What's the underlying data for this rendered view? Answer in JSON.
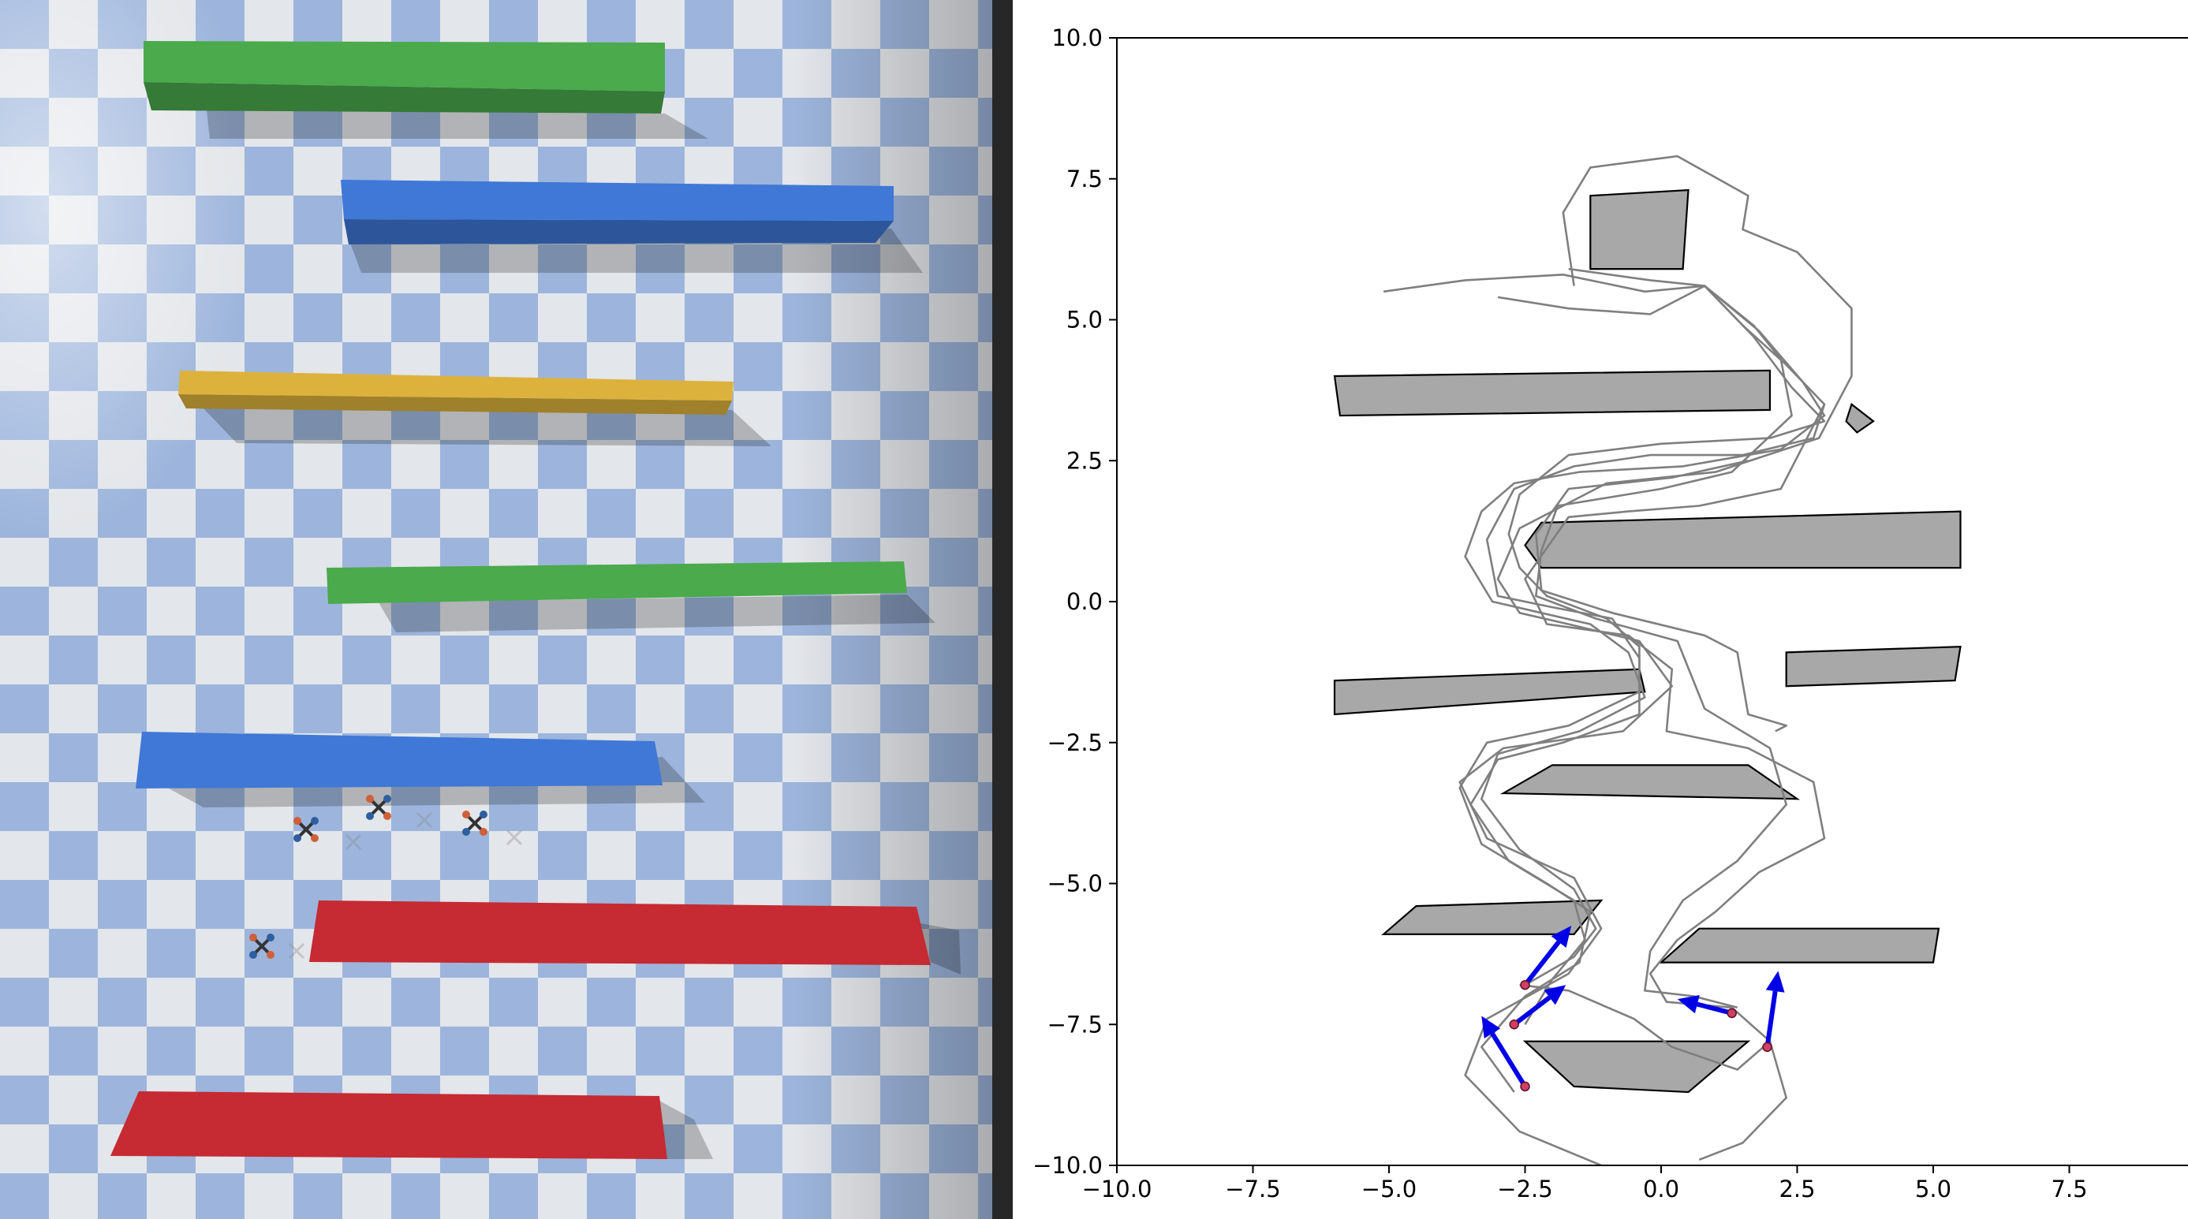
{
  "window": {
    "left_panel": "pybullet-style 3D simulation view: checkerboard floor, bar obstacles and quadrotors",
    "right_panel": "2D trajectory plot"
  },
  "simulation": {
    "floor_colors": {
      "light": "#e3e6ea",
      "dark": "#9db5dc"
    },
    "obstacle_colors": {
      "green": "#4aaa4c",
      "blue": "#3f78d6",
      "yellow": "#ddb23c",
      "red": "#c62a32"
    },
    "obstacles": [
      {
        "color": "green"
      },
      {
        "color": "blue"
      },
      {
        "color": "yellow"
      },
      {
        "color": "green"
      },
      {
        "color": "blue"
      },
      {
        "color": "red"
      },
      {
        "color": "red"
      }
    ],
    "drone_count": 5,
    "ghost_drone_count": 5
  },
  "chart_data": {
    "type": "scatter",
    "xlim": [
      -10,
      10
    ],
    "ylim": [
      -10,
      10
    ],
    "x_ticks": [
      -10.0,
      -7.5,
      -5.0,
      -2.5,
      0.0,
      2.5,
      5.0,
      7.5
    ],
    "y_ticks": [
      -10.0,
      -7.5,
      -5.0,
      -2.5,
      0.0,
      2.5,
      5.0,
      7.5,
      10.0
    ],
    "x_tick_labels": [
      "−10.0",
      "−7.5",
      "−5.0",
      "−2.5",
      "0.0",
      "2.5",
      "5.0",
      "7.5"
    ],
    "y_tick_labels": [
      "−10.0",
      "−7.5",
      "−5.0",
      "−2.5",
      "0.0",
      "2.5",
      "5.0",
      "7.5",
      "10.0"
    ],
    "grid": false,
    "obstacle_color": "#a8a8a8",
    "path_color": "#7f7f7f",
    "arrow_color": "#0000e6",
    "robot_color": "#d04060",
    "obstacles": [
      [
        [
          -1.3,
          7.2
        ],
        [
          0.5,
          7.3
        ],
        [
          0.4,
          5.9
        ],
        [
          -1.3,
          5.9
        ]
      ],
      [
        [
          -6.0,
          4.0
        ],
        [
          2.0,
          4.1
        ],
        [
          2.0,
          3.4
        ],
        [
          -5.9,
          3.3
        ]
      ],
      [
        [
          3.5,
          3.5
        ],
        [
          3.9,
          3.2
        ],
        [
          3.6,
          3.0
        ],
        [
          3.4,
          3.2
        ]
      ],
      [
        [
          -2.2,
          1.4
        ],
        [
          5.5,
          1.6
        ],
        [
          5.5,
          0.6
        ],
        [
          -2.2,
          0.6
        ],
        [
          -2.5,
          1.0
        ]
      ],
      [
        [
          -6.0,
          -1.4
        ],
        [
          -0.4,
          -1.2
        ],
        [
          -0.3,
          -1.6
        ],
        [
          -6.0,
          -2.0
        ]
      ],
      [
        [
          2.3,
          -0.9
        ],
        [
          5.5,
          -0.8
        ],
        [
          5.4,
          -1.4
        ],
        [
          2.3,
          -1.5
        ]
      ],
      [
        [
          -2.0,
          -2.9
        ],
        [
          1.6,
          -2.9
        ],
        [
          2.5,
          -3.5
        ],
        [
          -2.9,
          -3.4
        ]
      ],
      [
        [
          -4.5,
          -5.4
        ],
        [
          -1.1,
          -5.3
        ],
        [
          -1.6,
          -5.9
        ],
        [
          -5.1,
          -5.9
        ]
      ],
      [
        [
          0.7,
          -5.8
        ],
        [
          5.1,
          -5.8
        ],
        [
          5.0,
          -6.4
        ],
        [
          0.0,
          -6.4
        ]
      ],
      [
        [
          -2.5,
          -7.8
        ],
        [
          1.6,
          -7.8
        ],
        [
          0.5,
          -8.7
        ],
        [
          -1.6,
          -8.6
        ]
      ]
    ],
    "paths": [
      [
        [
          -5.1,
          5.5
        ],
        [
          -3.6,
          5.7
        ],
        [
          -1.8,
          5.8
        ],
        [
          -0.3,
          5.5
        ],
        [
          0.8,
          5.6
        ],
        [
          1.8,
          4.8
        ],
        [
          2.6,
          3.9
        ],
        [
          3.0,
          3.3
        ],
        [
          2.2,
          2.7
        ],
        [
          0.4,
          2.4
        ],
        [
          -1.5,
          2.3
        ],
        [
          -2.7,
          2.1
        ],
        [
          -3.3,
          1.6
        ],
        [
          -3.6,
          0.8
        ],
        [
          -3.1,
          0.0
        ],
        [
          -2.2,
          -0.2
        ],
        [
          -1.3,
          -0.4
        ],
        [
          -0.6,
          -0.9
        ],
        [
          -0.3,
          -1.7
        ],
        [
          -1.5,
          -2.3
        ],
        [
          -3.0,
          -2.7
        ],
        [
          -3.3,
          -3.5
        ],
        [
          -2.6,
          -4.4
        ],
        [
          -1.6,
          -5.1
        ],
        [
          -1.2,
          -5.8
        ],
        [
          -1.6,
          -6.3
        ],
        [
          -2.5,
          -6.8
        ]
      ],
      [
        [
          -3.0,
          5.4
        ],
        [
          -1.7,
          5.2
        ],
        [
          -0.2,
          5.1
        ],
        [
          0.8,
          5.6
        ],
        [
          1.5,
          4.9
        ],
        [
          2.3,
          4.2
        ],
        [
          3.0,
          3.5
        ],
        [
          2.8,
          2.9
        ],
        [
          1.5,
          2.6
        ],
        [
          -0.2,
          2.6
        ],
        [
          -1.6,
          2.4
        ],
        [
          -2.7,
          2.0
        ],
        [
          -3.2,
          1.1
        ],
        [
          -3.0,
          0.1
        ],
        [
          -2.0,
          -0.1
        ],
        [
          -0.9,
          -0.3
        ],
        [
          -0.4,
          -1.0
        ],
        [
          -0.4,
          -2.0
        ],
        [
          -1.8,
          -2.5
        ],
        [
          -3.0,
          -2.8
        ],
        [
          -3.5,
          -3.6
        ],
        [
          -2.8,
          -4.6
        ],
        [
          -1.6,
          -5.3
        ],
        [
          -1.4,
          -6.0
        ],
        [
          -2.0,
          -6.7
        ],
        [
          -2.5,
          -7.5
        ]
      ],
      [
        [
          -1.7,
          5.9
        ],
        [
          -0.2,
          5.7
        ],
        [
          0.8,
          5.6
        ],
        [
          1.7,
          4.7
        ],
        [
          2.4,
          3.8
        ],
        [
          3.0,
          3.2
        ],
        [
          2.0,
          2.9
        ],
        [
          0.0,
          2.8
        ],
        [
          -1.7,
          2.6
        ],
        [
          -2.6,
          1.9
        ],
        [
          -2.8,
          1.2
        ],
        [
          -2.6,
          0.6
        ],
        [
          -2.1,
          0.1
        ],
        [
          -1.0,
          -0.3
        ],
        [
          -0.4,
          -0.8
        ],
        [
          -0.4,
          -1.6
        ],
        [
          -1.7,
          -2.2
        ],
        [
          -3.2,
          -2.5
        ],
        [
          -3.7,
          -3.3
        ],
        [
          -3.3,
          -4.3
        ],
        [
          -2.1,
          -5.0
        ],
        [
          -1.3,
          -5.5
        ],
        [
          -1.5,
          -6.4
        ],
        [
          -2.5,
          -7.0
        ],
        [
          -3.3,
          -7.9
        ],
        [
          -2.7,
          -8.7
        ]
      ],
      [
        [
          -1.6,
          5.6
        ],
        [
          -1.8,
          6.9
        ],
        [
          -1.3,
          7.7
        ],
        [
          0.3,
          7.9
        ],
        [
          1.6,
          7.2
        ],
        [
          1.5,
          6.6
        ],
        [
          2.5,
          6.2
        ],
        [
          3.5,
          5.2
        ],
        [
          3.5,
          4.0
        ],
        [
          2.9,
          2.9
        ],
        [
          1.0,
          2.3
        ],
        [
          -1.0,
          2.1
        ],
        [
          -2.6,
          1.3
        ],
        [
          -3.0,
          0.4
        ],
        [
          -2.6,
          -0.2
        ],
        [
          -1.7,
          -0.4
        ],
        [
          -0.4,
          -0.7
        ],
        [
          0.2,
          -1.5
        ],
        [
          -0.7,
          -2.3
        ],
        [
          -2.9,
          -2.6
        ],
        [
          -3.7,
          -3.2
        ],
        [
          -3.2,
          -4.2
        ],
        [
          -1.6,
          -4.9
        ],
        [
          -1.1,
          -5.8
        ],
        [
          -1.7,
          -6.6
        ],
        [
          -3.2,
          -7.4
        ],
        [
          -3.6,
          -8.4
        ],
        [
          -2.6,
          -9.4
        ],
        [
          -1.1,
          -10.0
        ]
      ],
      [
        [
          3.0,
          3.5
        ],
        [
          2.2,
          2.0
        ],
        [
          0.7,
          1.7
        ],
        [
          -0.6,
          1.6
        ],
        [
          -1.7,
          1.5
        ],
        [
          -2.5,
          0.4
        ],
        [
          -2.1,
          -0.4
        ],
        [
          -0.6,
          -0.6
        ],
        [
          0.2,
          -1.2
        ],
        [
          0.1,
          -2.3
        ],
        [
          1.6,
          -2.6
        ],
        [
          2.8,
          -3.2
        ],
        [
          3.0,
          -4.2
        ],
        [
          1.8,
          -4.8
        ],
        [
          1.0,
          -5.5
        ],
        [
          0.3,
          -6.0
        ],
        [
          -0.2,
          -6.6
        ],
        [
          0.1,
          -7.1
        ],
        [
          1.3,
          -7.2
        ],
        [
          2.0,
          -7.8
        ],
        [
          2.3,
          -8.8
        ],
        [
          1.5,
          -9.6
        ],
        [
          0.7,
          -9.9
        ]
      ],
      [
        [
          0.8,
          5.6
        ],
        [
          1.7,
          4.9
        ],
        [
          2.2,
          4.3
        ],
        [
          2.4,
          3.3
        ],
        [
          1.3,
          2.3
        ],
        [
          0.0,
          2.0
        ],
        [
          -1.9,
          1.7
        ],
        [
          -2.2,
          0.9
        ],
        [
          -2.3,
          0.1
        ],
        [
          -1.2,
          -0.3
        ],
        [
          0.3,
          -0.7
        ],
        [
          0.8,
          -1.9
        ],
        [
          2.0,
          -2.6
        ],
        [
          2.3,
          -3.6
        ],
        [
          1.4,
          -4.6
        ],
        [
          0.4,
          -5.3
        ],
        [
          -0.2,
          -6.2
        ],
        [
          -0.3,
          -6.9
        ],
        [
          0.6,
          -7.0
        ],
        [
          1.4,
          -7.2
        ]
      ],
      [
        [
          1.6,
          2.5
        ],
        [
          0.2,
          2.2
        ],
        [
          -1.7,
          2.0
        ],
        [
          -2.3,
          1.2
        ],
        [
          -2.2,
          0.2
        ],
        [
          -0.9,
          -0.2
        ],
        [
          0.8,
          -0.6
        ],
        [
          1.4,
          -0.9
        ],
        [
          1.6,
          -2.0
        ],
        [
          2.3,
          -2.2
        ],
        [
          2.1,
          -2.3
        ]
      ],
      [
        [
          -2.6,
          -6.8
        ],
        [
          -1.7,
          -6.9
        ],
        [
          -0.5,
          -7.4
        ],
        [
          0.2,
          -7.9
        ],
        [
          1.4,
          -8.3
        ],
        [
          2.0,
          -7.8
        ]
      ]
    ],
    "robots": [
      {
        "x": -2.5,
        "y": -6.8,
        "dx": 0.85,
        "dy": 1.05
      },
      {
        "x": -2.7,
        "y": -7.5,
        "dx": 0.95,
        "dy": 0.7
      },
      {
        "x": -2.5,
        "y": -8.6,
        "dx": -0.8,
        "dy": 1.25
      },
      {
        "x": 1.3,
        "y": -7.3,
        "dx": -1.0,
        "dy": 0.25
      },
      {
        "x": 1.95,
        "y": -7.9,
        "dx": 0.2,
        "dy": 1.35
      }
    ]
  }
}
